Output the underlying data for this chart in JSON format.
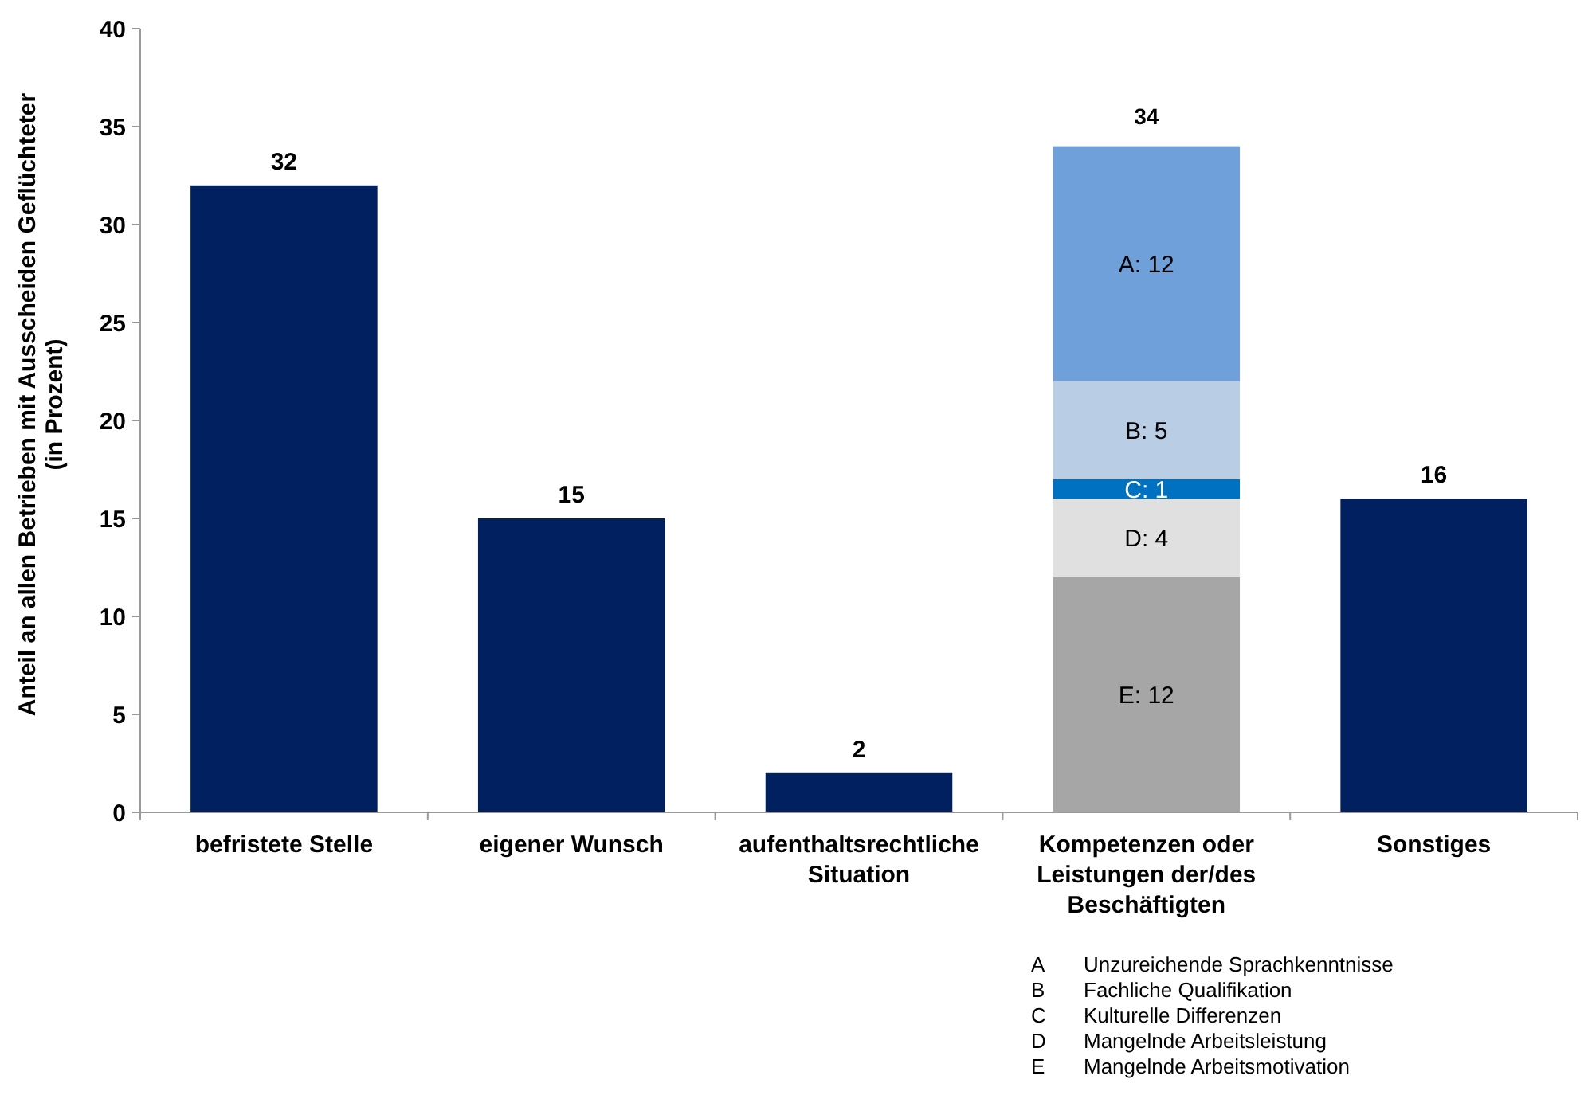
{
  "chart_data": {
    "type": "bar",
    "ylabel": "Anteil an allen Betrieben mit Ausscheiden Geflüchteter (in Prozent)",
    "categories": [
      "befristete Stelle",
      "eigener Wunsch",
      "aufenthaltsrechtliche Situation",
      "Kompetenzen oder Leistungen der/des Beschäftigten",
      "Sonstiges"
    ],
    "stacked": true,
    "grid": false,
    "ylim": [
      0,
      40
    ],
    "yticks": [
      0,
      5,
      10,
      15,
      20,
      25,
      30,
      35,
      40
    ],
    "series": [
      {
        "color": "#002060",
        "values": [
          32,
          15,
          2,
          null,
          16
        ],
        "value_labels": [
          "32",
          "15",
          "2",
          null,
          "16"
        ]
      },
      {
        "color": "#a6a6a6",
        "values": [
          null,
          null,
          null,
          12,
          null
        ],
        "value_labels": [
          null,
          null,
          null,
          "E: 12",
          null
        ]
      },
      {
        "color": "#e0e0e0",
        "values": [
          null,
          null,
          null,
          4,
          null
        ],
        "value_labels": [
          null,
          null,
          null,
          "D: 4",
          null
        ]
      },
      {
        "color": "#0070c0",
        "values": [
          null,
          null,
          null,
          1,
          null
        ],
        "value_labels": [
          null,
          null,
          null,
          "C: 1",
          null
        ]
      },
      {
        "color": "#b9cde5",
        "values": [
          null,
          null,
          null,
          5,
          null
        ],
        "value_labels": [
          null,
          null,
          null,
          "B: 5",
          null
        ]
      },
      {
        "color": "#6fa0da",
        "values": [
          null,
          null,
          null,
          12,
          null
        ],
        "value_labels": [
          null,
          null,
          null,
          "A: 12",
          null
        ]
      }
    ],
    "totals": [
      null,
      null,
      null,
      "34",
      null
    ],
    "annotations": [
      "A Unzureichende Sprachkenntnisse",
      "B Fachliche Qualifikation",
      "C Kulturelle Differenzen",
      "D Mangelnde Arbeitsleistung",
      "E Mangelnde Arbeitsmotivation"
    ]
  }
}
